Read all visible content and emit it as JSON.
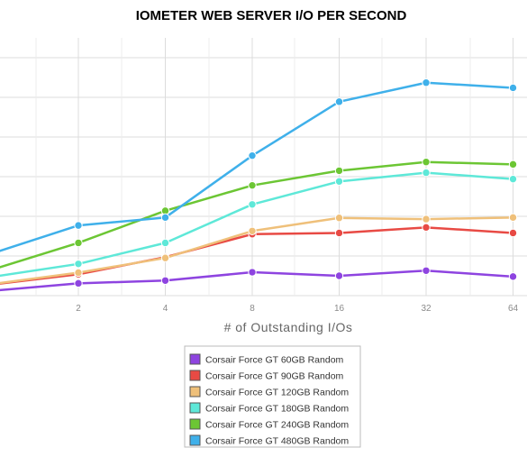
{
  "chart_data": {
    "type": "line",
    "title": "IOMETER WEB SERVER I/O PER SECOND",
    "xlabel": "# of Outstanding I/Os",
    "ylabel": "",
    "x_scale": "log2",
    "x": [
      1,
      2,
      4,
      8,
      16,
      32,
      64
    ],
    "x_tick_labels": [
      "2",
      "4",
      "8",
      "16",
      "32",
      "64"
    ],
    "ylim": [
      0,
      6500
    ],
    "y_grid_step": 1000,
    "grid": true,
    "legend_position": "bottom-center",
    "series": [
      {
        "name": "Corsair Force GT 60GB Random",
        "color": "#8e44e0",
        "values": [
          120,
          310,
          380,
          590,
          500,
          630,
          480
        ]
      },
      {
        "name": "Corsair Force GT 90GB Random",
        "color": "#e84a44",
        "values": [
          280,
          540,
          970,
          1550,
          1580,
          1720,
          1580
        ]
      },
      {
        "name": "Corsair Force GT 120GB Random",
        "color": "#efc07a",
        "values": [
          290,
          580,
          950,
          1630,
          1960,
          1930,
          1970
        ]
      },
      {
        "name": "Corsair Force GT 180GB Random",
        "color": "#5ee8d8",
        "values": [
          470,
          800,
          1330,
          2300,
          2880,
          3100,
          2940
        ]
      },
      {
        "name": "Corsair Force GT 240GB Random",
        "color": "#6cc634",
        "values": [
          650,
          1330,
          2140,
          2780,
          3150,
          3370,
          3310
        ]
      },
      {
        "name": "Corsair Force GT 480GB Random",
        "color": "#3fb0ea",
        "values": [
          1060,
          1770,
          1970,
          3530,
          4890,
          5370,
          5240
        ]
      }
    ]
  }
}
